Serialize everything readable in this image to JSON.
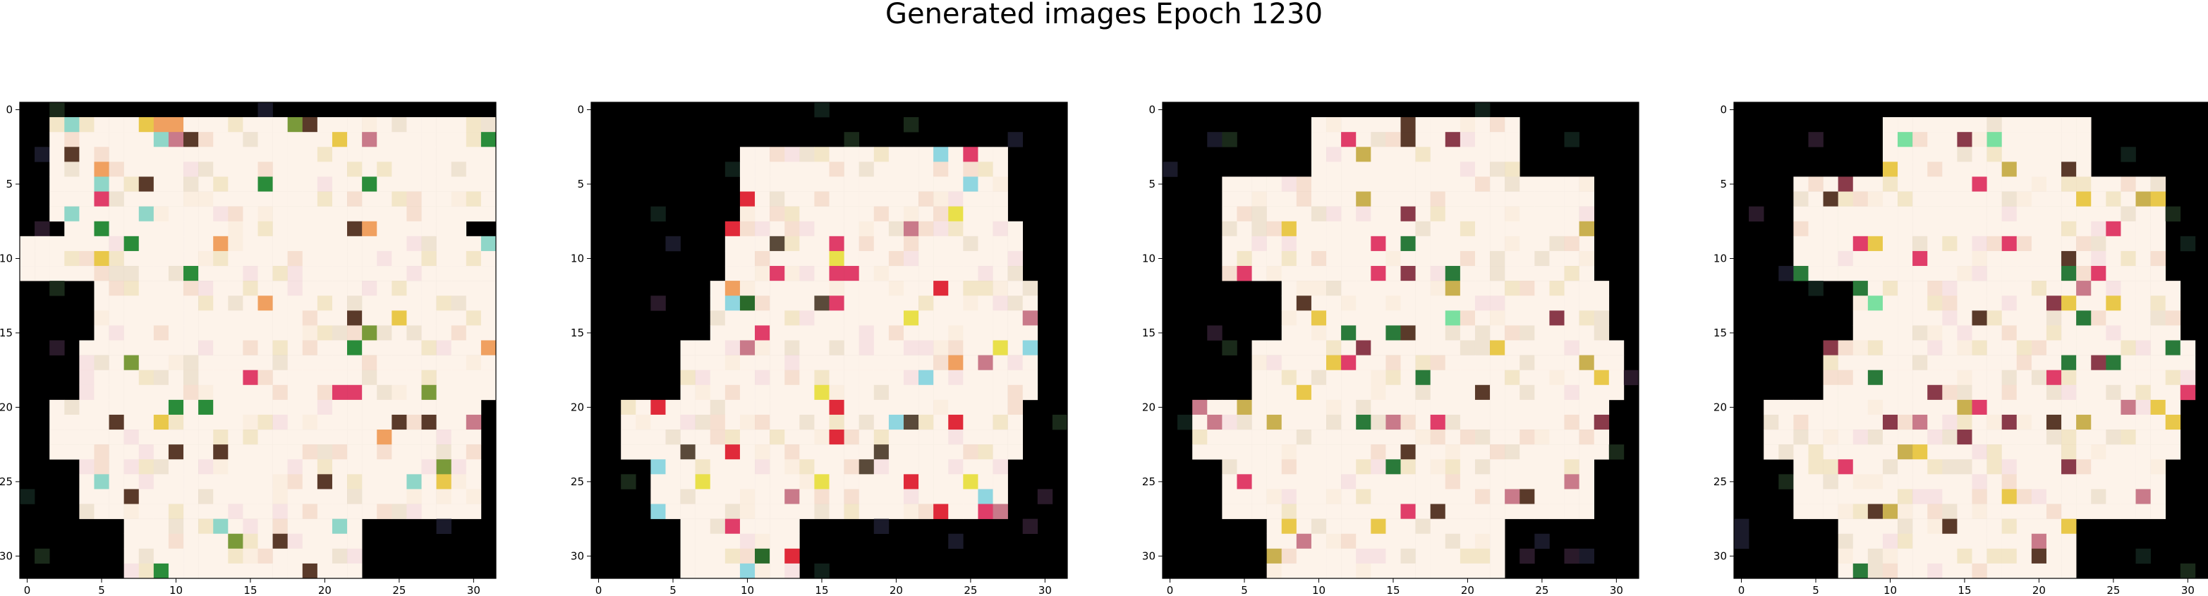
{
  "figure": {
    "title": "Generated images Epoch 1230"
  },
  "chart_data": [
    {
      "type": "heatmap",
      "xlim": [
        -0.5,
        31.5
      ],
      "ylim": [
        31.5,
        -0.5
      ],
      "xticks": [
        "0",
        "5",
        "10",
        "15",
        "20",
        "25",
        "30"
      ],
      "yticks": [
        "0",
        "5",
        "10",
        "15",
        "20",
        "25",
        "30"
      ],
      "background": "#000000",
      "fill": "#fdf3ea",
      "mask_profile": [
        [
          1,
          7,
          2,
          32
        ],
        [
          5,
          8,
          3,
          29
        ],
        [
          8,
          11,
          0,
          33
        ],
        [
          12,
          15,
          5,
          31
        ],
        [
          16,
          19,
          4,
          33
        ],
        [
          20,
          23,
          2,
          30
        ],
        [
          24,
          27,
          4,
          30
        ],
        [
          28,
          31,
          7,
          22
        ]
      ],
      "accent_colors": [
        "#e03d69",
        "#2a8c3a",
        "#c97a8a",
        "#e9c84a",
        "#5a3a2a",
        "#f0a060",
        "#8fd6c8",
        "#7a9a3a"
      ]
    },
    {
      "type": "heatmap",
      "xlim": [
        -0.5,
        31.5
      ],
      "ylim": [
        31.5,
        -0.5
      ],
      "xticks": [
        "0",
        "5",
        "10",
        "15",
        "20",
        "25",
        "30"
      ],
      "yticks": [
        "0",
        "5",
        "10",
        "15",
        "20",
        "25",
        "30"
      ],
      "background": "#000000",
      "fill": "#fdf3ea",
      "mask_profile": [
        [
          3,
          7,
          10,
          27
        ],
        [
          8,
          11,
          9,
          28
        ],
        [
          12,
          15,
          8,
          29
        ],
        [
          16,
          19,
          6,
          29
        ],
        [
          20,
          23,
          2,
          28
        ],
        [
          24,
          27,
          4,
          27
        ],
        [
          28,
          31,
          6,
          13
        ]
      ],
      "accent_colors": [
        "#e02a3a",
        "#f0a060",
        "#e9e04a",
        "#c97a8a",
        "#2a6a2a",
        "#8fd6e0",
        "#5a4a3a",
        "#e03d69"
      ]
    },
    {
      "type": "heatmap",
      "xlim": [
        -0.5,
        31.5
      ],
      "ylim": [
        31.5,
        -0.5
      ],
      "xticks": [
        "0",
        "5",
        "10",
        "15",
        "20",
        "25",
        "30"
      ],
      "yticks": [
        "0",
        "5",
        "10",
        "15",
        "20",
        "25",
        "30"
      ],
      "background": "#000000",
      "fill": "#fdf3ea",
      "mask_profile": [
        [
          1,
          4,
          10,
          23
        ],
        [
          5,
          11,
          4,
          28
        ],
        [
          12,
          15,
          8,
          29
        ],
        [
          16,
          19,
          6,
          30
        ],
        [
          20,
          23,
          2,
          29
        ],
        [
          24,
          27,
          4,
          28
        ],
        [
          28,
          31,
          7,
          22
        ]
      ],
      "accent_colors": [
        "#e03d69",
        "#c97a8a",
        "#2a7a3a",
        "#e9c84a",
        "#5a3a2a",
        "#c9b050",
        "#8a3a4a",
        "#7ae0a0"
      ]
    },
    {
      "type": "heatmap",
      "xlim": [
        -0.5,
        31.5
      ],
      "ylim": [
        31.5,
        -0.5
      ],
      "xticks": [
        "0",
        "5",
        "10",
        "15",
        "20",
        "25",
        "30"
      ],
      "yticks": [
        "0",
        "5",
        "10",
        "15",
        "20",
        "25",
        "30"
      ],
      "background": "#000000",
      "fill": "#fdf3ea",
      "mask_profile": [
        [
          1,
          4,
          10,
          23
        ],
        [
          5,
          11,
          4,
          28
        ],
        [
          12,
          15,
          8,
          29
        ],
        [
          16,
          19,
          6,
          30
        ],
        [
          20,
          23,
          2,
          29
        ],
        [
          24,
          27,
          4,
          28
        ],
        [
          28,
          31,
          7,
          22
        ]
      ],
      "accent_colors": [
        "#e03d69",
        "#c97a8a",
        "#2a7a3a",
        "#e9c84a",
        "#5a3a2a",
        "#c9b050",
        "#8a3a4a",
        "#7ae0a0"
      ]
    }
  ]
}
